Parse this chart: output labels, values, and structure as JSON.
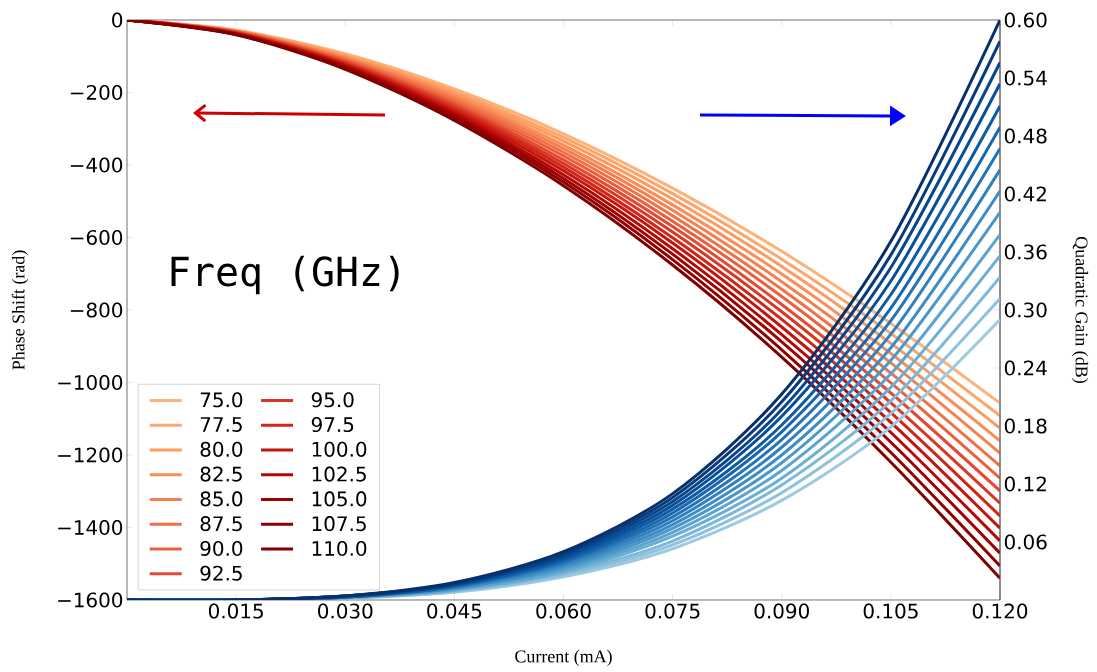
{
  "chart_data": {
    "type": "line",
    "xlabel": "Current (mA)",
    "ylabel": "Phase Shift (rad)",
    "y2label": "Quadratic Gain (dB)",
    "legend_title": "Freq (GHz)",
    "legend": "bottom left",
    "marker": "none",
    "x": [
      0,
      0.015,
      0.03,
      0.045,
      0.06,
      0.075,
      0.09,
      0.105,
      0.12
    ],
    "xlim": [
      0,
      0.12
    ],
    "ylim": [
      -1600,
      0
    ],
    "y2lim": [
      0,
      0.6
    ],
    "xticks": [
      0.015,
      {
        "value": 0.03,
        "label": "0.030"
      },
      0.045,
      {
        "value": 0.06,
        "label": "0.060"
      },
      0.075,
      {
        "value": 0.09,
        "label": "0.090"
      },
      0.105,
      {
        "value": 0.12,
        "label": "0.120"
      }
    ],
    "yticks": [
      {
        "value": -1600,
        "label": "−1600"
      },
      {
        "value": -1400,
        "label": "−1400"
      },
      {
        "value": -1200,
        "label": "−1200"
      },
      {
        "value": -1000,
        "label": "−1000"
      },
      {
        "value": -800,
        "label": "−800"
      },
      {
        "value": -600,
        "label": "−600"
      },
      {
        "value": -400,
        "label": "−400"
      },
      {
        "value": -200,
        "label": "−200"
      },
      0
    ],
    "y2ticks": [
      0.06,
      0.12,
      0.18,
      0.24,
      {
        "value": 0.3,
        "label": "0.30"
      },
      0.36,
      0.42,
      0.48,
      0.54,
      {
        "value": 0.6,
        "label": "0.60"
      }
    ],
    "series": [
      {
        "name": "75.0",
        "color": "#fdb27a",
        "values": [
          0,
          -28,
          -93,
          -190,
          -314,
          -464,
          -638,
          -837,
          -1057
        ]
      },
      {
        "name": "77.5",
        "color": "#fca66c",
        "values": [
          0,
          -29,
          -97,
          -197,
          -324,
          -479,
          -660,
          -865,
          -1092
        ]
      },
      {
        "name": "80.0",
        "color": "#fc9a60",
        "values": [
          0,
          -30,
          -100,
          -203,
          -334,
          -494,
          -680,
          -892,
          -1126
        ]
      },
      {
        "name": "82.5",
        "color": "#fb8d57",
        "values": [
          0,
          -31,
          -103,
          -209,
          -345,
          -510,
          -701,
          -920,
          -1161
        ]
      },
      {
        "name": "85.0",
        "color": "#f4804f",
        "values": [
          0,
          -31,
          -106,
          -215,
          -355,
          -525,
          -722,
          -946,
          -1195
        ]
      },
      {
        "name": "87.5",
        "color": "#ef7047",
        "values": [
          0,
          -32,
          -109,
          -221,
          -365,
          -540,
          -743,
          -974,
          -1230
        ]
      },
      {
        "name": "90.0",
        "color": "#e9603c",
        "values": [
          0,
          -33,
          -112,
          -228,
          -375,
          -555,
          -763,
          -1001,
          -1264
        ]
      },
      {
        "name": "92.5",
        "color": "#e34a33",
        "values": [
          0,
          -34,
          -115,
          -234,
          -386,
          -570,
          -785,
          -1029,
          -1299
        ]
      },
      {
        "name": "95.0",
        "color": "#d93623",
        "values": [
          0,
          -35,
          -118,
          -240,
          -396,
          -585,
          -805,
          -1056,
          -1333
        ]
      },
      {
        "name": "97.5",
        "color": "#cf2617",
        "values": [
          0,
          -36,
          -121,
          -246,
          -406,
          -601,
          -826,
          -1083,
          -1368
        ]
      },
      {
        "name": "100.0",
        "color": "#c3150c",
        "values": [
          0,
          -37,
          -124,
          -252,
          -416,
          -615,
          -847,
          -1110,
          -1402
        ]
      },
      {
        "name": "102.5",
        "color": "#b30805",
        "values": [
          0,
          -38,
          -127,
          -259,
          -427,
          -631,
          -868,
          -1138,
          -1437
        ]
      },
      {
        "name": "105.0",
        "color": "#a00000",
        "values": [
          0,
          -39,
          -130,
          -265,
          -437,
          -646,
          -888,
          -1165,
          -1471
        ]
      },
      {
        "name": "107.5",
        "color": "#8f0000",
        "values": [
          0,
          -40,
          -133,
          -271,
          -447,
          -661,
          -910,
          -1193,
          -1506
        ]
      },
      {
        "name": "110.0",
        "color": "#7f0000",
        "values": [
          0,
          -41,
          -136,
          -277,
          -457,
          -676,
          -930,
          -1220,
          -1540
        ]
      },
      {
        "axis": "y2",
        "color": "#9ecae1",
        "values": [
          0,
          0,
          0.002,
          0.008,
          0.024,
          0.053,
          0.103,
          0.179,
          0.29
        ]
      },
      {
        "axis": "y2",
        "color": "#8fc1de",
        "values": [
          0,
          0,
          0.002,
          0.009,
          0.026,
          0.057,
          0.111,
          0.193,
          0.312
        ]
      },
      {
        "axis": "y2",
        "color": "#7db8da",
        "values": [
          0,
          0,
          0.002,
          0.01,
          0.028,
          0.061,
          0.119,
          0.206,
          0.334
        ]
      },
      {
        "axis": "y2",
        "color": "#6aaed6",
        "values": [
          0,
          0,
          0.002,
          0.01,
          0.029,
          0.066,
          0.126,
          0.22,
          0.356
        ]
      },
      {
        "axis": "y2",
        "color": "#5ba3d0",
        "values": [
          0,
          0,
          0.003,
          0.011,
          0.031,
          0.07,
          0.134,
          0.234,
          0.378
        ]
      },
      {
        "axis": "y2",
        "color": "#4a98c9",
        "values": [
          0,
          0,
          0.003,
          0.012,
          0.033,
          0.074,
          0.142,
          0.248,
          0.401
        ]
      },
      {
        "axis": "y2",
        "color": "#3d8dc4",
        "values": [
          0,
          0,
          0.003,
          0.012,
          0.035,
          0.078,
          0.15,
          0.261,
          0.423
        ]
      },
      {
        "axis": "y2",
        "color": "#3181bd",
        "values": [
          0,
          0,
          0.003,
          0.013,
          0.037,
          0.082,
          0.158,
          0.275,
          0.445
        ]
      },
      {
        "axis": "y2",
        "color": "#2474b7",
        "values": [
          0,
          0,
          0.003,
          0.014,
          0.039,
          0.086,
          0.166,
          0.289,
          0.467
        ]
      },
      {
        "axis": "y2",
        "color": "#1967ad",
        "values": [
          0,
          0,
          0.003,
          0.014,
          0.04,
          0.09,
          0.174,
          0.302,
          0.489
        ]
      },
      {
        "axis": "y2",
        "color": "#0f5ba3",
        "values": [
          0,
          0,
          0.003,
          0.015,
          0.042,
          0.094,
          0.181,
          0.316,
          0.511
        ]
      },
      {
        "axis": "y2",
        "color": "#084f99",
        "values": [
          0,
          0,
          0.004,
          0.016,
          0.044,
          0.098,
          0.19,
          0.33,
          0.534
        ]
      },
      {
        "axis": "y2",
        "color": "#08458a",
        "values": [
          0,
          0,
          0.004,
          0.016,
          0.046,
          0.102,
          0.197,
          0.344,
          0.556
        ]
      },
      {
        "axis": "y2",
        "color": "#083b7b",
        "values": [
          0,
          0,
          0.004,
          0.017,
          0.048,
          0.106,
          0.205,
          0.357,
          0.578
        ]
      },
      {
        "axis": "y2",
        "color": "#08306b",
        "values": [
          0,
          0,
          0.004,
          0.018,
          0.05,
          0.11,
          0.213,
          0.371,
          0.6
        ]
      }
    ]
  }
}
